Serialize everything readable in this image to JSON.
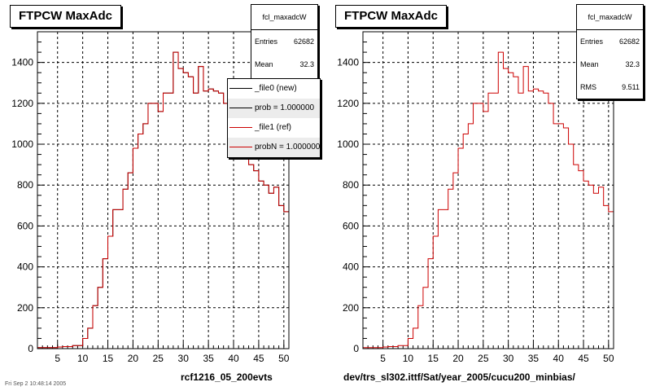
{
  "colors": {
    "ref_line": "#cc0000",
    "new_line": "#000000",
    "frame": "#000000",
    "grid": "#000000",
    "background": "#ffffff"
  },
  "footer": {
    "datestamp": "Fri Sep  2 10:48:14 2005"
  },
  "left": {
    "title": "FTPCW MaxAdc",
    "caption": "rcf1216_05_200evts",
    "stats": {
      "name": "fcl_maxadcW",
      "entries_label": "Entries",
      "entries": "62682",
      "mean_label": "Mean",
      "mean": "32.3"
    },
    "legend": [
      {
        "label": "_file0 (new)",
        "color": "#000000",
        "fill": "#ffffff"
      },
      {
        "label": "prob = 1.000000",
        "color": "#000000",
        "fill": "#ececec"
      },
      {
        "label": "_file1 (ref)",
        "color": "#cc0000",
        "fill": "#ffffff"
      },
      {
        "label": "probN = 1.000000",
        "color": "#cc0000",
        "fill": "#ececec"
      }
    ]
  },
  "right": {
    "title": "FTPCW MaxAdc",
    "caption": "dev/trs_sl302.ittf/Sat/year_2005/cucu200_minbias/",
    "stats": {
      "name": "fcl_maxadcW",
      "entries_label": "Entries",
      "entries": "62682",
      "mean_label": "Mean",
      "mean": "32.3",
      "rms_label": "RMS",
      "rms": "9.511"
    }
  },
  "chart_data": [
    {
      "type": "step-histogram",
      "title": "FTPCW MaxAdc",
      "xlabel": "rcf1216_05_200evts",
      "ylabel": "",
      "xlim": [
        1,
        51
      ],
      "ylim": [
        0,
        1550
      ],
      "xticks": [
        5,
        10,
        15,
        20,
        25,
        30,
        35,
        40,
        45,
        50
      ],
      "yticks": [
        0,
        200,
        400,
        600,
        800,
        1000,
        1200,
        1400
      ],
      "grid": true,
      "legend_position": "top-right",
      "bin_edges_start": 1,
      "bin_width": 1,
      "series": [
        {
          "name": "_file0 (new)",
          "color": "#000000",
          "values": [
            5,
            5,
            5,
            5,
            8,
            10,
            10,
            15,
            15,
            50,
            100,
            210,
            300,
            440,
            550,
            680,
            680,
            780,
            860,
            980,
            1050,
            1100,
            1200,
            1200,
            1160,
            1250,
            1250,
            1450,
            1370,
            1350,
            1330,
            1250,
            1380,
            1260,
            1270,
            1260,
            1250,
            1200,
            1100,
            1100,
            1080,
            1000,
            900,
            870,
            820,
            800,
            760,
            790,
            700,
            670
          ]
        },
        {
          "name": "_file1 (ref)",
          "color": "#cc0000",
          "values": [
            5,
            5,
            5,
            5,
            8,
            10,
            10,
            15,
            15,
            50,
            100,
            210,
            300,
            440,
            550,
            680,
            680,
            780,
            860,
            980,
            1050,
            1100,
            1200,
            1200,
            1160,
            1250,
            1250,
            1450,
            1370,
            1350,
            1330,
            1250,
            1380,
            1260,
            1270,
            1260,
            1250,
            1200,
            1100,
            1100,
            1080,
            1000,
            900,
            870,
            820,
            800,
            760,
            790,
            700,
            670
          ]
        }
      ]
    },
    {
      "type": "step-histogram",
      "title": "FTPCW MaxAdc",
      "xlabel": "dev/trs_sl302.ittf/Sat/year_2005/cucu200_minbias/",
      "ylabel": "",
      "xlim": [
        1,
        51
      ],
      "ylim": [
        0,
        1550
      ],
      "xticks": [
        5,
        10,
        15,
        20,
        25,
        30,
        35,
        40,
        45,
        50
      ],
      "yticks": [
        0,
        200,
        400,
        600,
        800,
        1000,
        1200,
        1400
      ],
      "grid": true,
      "bin_edges_start": 1,
      "bin_width": 1,
      "series": [
        {
          "name": "fcl_maxadcW",
          "color": "#cc0000",
          "values": [
            5,
            5,
            5,
            5,
            8,
            10,
            10,
            15,
            15,
            50,
            100,
            210,
            300,
            440,
            550,
            680,
            680,
            780,
            860,
            980,
            1050,
            1100,
            1200,
            1200,
            1160,
            1250,
            1250,
            1450,
            1370,
            1350,
            1330,
            1250,
            1380,
            1260,
            1270,
            1260,
            1250,
            1200,
            1100,
            1100,
            1080,
            1000,
            900,
            870,
            820,
            800,
            760,
            790,
            700,
            670
          ]
        }
      ]
    }
  ]
}
